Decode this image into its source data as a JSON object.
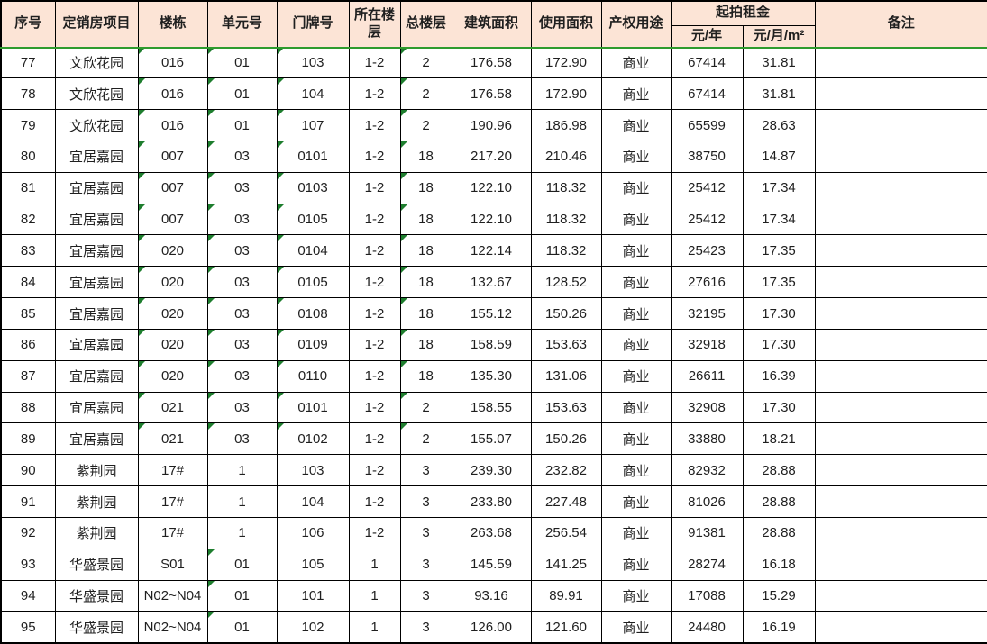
{
  "colors": {
    "header_fill": "#fce4d6",
    "grid_border": "#000000",
    "freeze_line_green": "#2e9b2e",
    "error_triangle_green": "#1e7e2e",
    "text": "#1f1f1f"
  },
  "table": {
    "rent_group_label": "起拍租金",
    "columns": [
      {
        "key": "seq",
        "label": "序号"
      },
      {
        "key": "project",
        "label": "定销房项目"
      },
      {
        "key": "building",
        "label": "楼栋"
      },
      {
        "key": "unit",
        "label": "单元号"
      },
      {
        "key": "door",
        "label": "门牌号"
      },
      {
        "key": "floor",
        "label": "所在楼层"
      },
      {
        "key": "total_floors",
        "label": "总楼层"
      },
      {
        "key": "build_area",
        "label": "建筑面积"
      },
      {
        "key": "use_area",
        "label": "使用面积"
      },
      {
        "key": "usage",
        "label": "产权用途"
      },
      {
        "key": "rent_year",
        "label": "元/年"
      },
      {
        "key": "rent_month",
        "label": "元/月/m²"
      },
      {
        "key": "remark",
        "label": "备注"
      }
    ],
    "rows": [
      {
        "seq": "77",
        "project": "文欣花园",
        "building": "016",
        "unit": "01",
        "door": "103",
        "floor": "1-2",
        "total_floors": "2",
        "build_area": "176.58",
        "use_area": "172.90",
        "usage": "商业",
        "rent_year": "67414",
        "rent_month": "31.81",
        "remark": "",
        "triangles": [
          "building",
          "unit",
          "door",
          "total_floors"
        ]
      },
      {
        "seq": "78",
        "project": "文欣花园",
        "building": "016",
        "unit": "01",
        "door": "104",
        "floor": "1-2",
        "total_floors": "2",
        "build_area": "176.58",
        "use_area": "172.90",
        "usage": "商业",
        "rent_year": "67414",
        "rent_month": "31.81",
        "remark": "",
        "triangles": [
          "building",
          "unit",
          "door",
          "total_floors"
        ]
      },
      {
        "seq": "79",
        "project": "文欣花园",
        "building": "016",
        "unit": "01",
        "door": "107",
        "floor": "1-2",
        "total_floors": "2",
        "build_area": "190.96",
        "use_area": "186.98",
        "usage": "商业",
        "rent_year": "65599",
        "rent_month": "28.63",
        "remark": "",
        "triangles": [
          "building",
          "unit",
          "door",
          "total_floors"
        ]
      },
      {
        "seq": "80",
        "project": "宜居嘉园",
        "building": "007",
        "unit": "03",
        "door": "0101",
        "floor": "1-2",
        "total_floors": "18",
        "build_area": "217.20",
        "use_area": "210.46",
        "usage": "商业",
        "rent_year": "38750",
        "rent_month": "14.87",
        "remark": "",
        "triangles": [
          "building",
          "unit",
          "door",
          "total_floors"
        ]
      },
      {
        "seq": "81",
        "project": "宜居嘉园",
        "building": "007",
        "unit": "03",
        "door": "0103",
        "floor": "1-2",
        "total_floors": "18",
        "build_area": "122.10",
        "use_area": "118.32",
        "usage": "商业",
        "rent_year": "25412",
        "rent_month": "17.34",
        "remark": "",
        "triangles": [
          "building",
          "unit",
          "door",
          "total_floors"
        ]
      },
      {
        "seq": "82",
        "project": "宜居嘉园",
        "building": "007",
        "unit": "03",
        "door": "0105",
        "floor": "1-2",
        "total_floors": "18",
        "build_area": "122.10",
        "use_area": "118.32",
        "usage": "商业",
        "rent_year": "25412",
        "rent_month": "17.34",
        "remark": "",
        "triangles": [
          "building",
          "unit",
          "door",
          "total_floors"
        ]
      },
      {
        "seq": "83",
        "project": "宜居嘉园",
        "building": "020",
        "unit": "03",
        "door": "0104",
        "floor": "1-2",
        "total_floors": "18",
        "build_area": "122.14",
        "use_area": "118.32",
        "usage": "商业",
        "rent_year": "25423",
        "rent_month": "17.35",
        "remark": "",
        "triangles": [
          "building",
          "unit",
          "door",
          "total_floors"
        ]
      },
      {
        "seq": "84",
        "project": "宜居嘉园",
        "building": "020",
        "unit": "03",
        "door": "0105",
        "floor": "1-2",
        "total_floors": "18",
        "build_area": "132.67",
        "use_area": "128.52",
        "usage": "商业",
        "rent_year": "27616",
        "rent_month": "17.35",
        "remark": "",
        "triangles": [
          "building",
          "unit",
          "door",
          "total_floors"
        ]
      },
      {
        "seq": "85",
        "project": "宜居嘉园",
        "building": "020",
        "unit": "03",
        "door": "0108",
        "floor": "1-2",
        "total_floors": "18",
        "build_area": "155.12",
        "use_area": "150.26",
        "usage": "商业",
        "rent_year": "32195",
        "rent_month": "17.30",
        "remark": "",
        "triangles": [
          "building",
          "unit",
          "door",
          "total_floors"
        ]
      },
      {
        "seq": "86",
        "project": "宜居嘉园",
        "building": "020",
        "unit": "03",
        "door": "0109",
        "floor": "1-2",
        "total_floors": "18",
        "build_area": "158.59",
        "use_area": "153.63",
        "usage": "商业",
        "rent_year": "32918",
        "rent_month": "17.30",
        "remark": "",
        "triangles": [
          "building",
          "unit",
          "door",
          "total_floors"
        ]
      },
      {
        "seq": "87",
        "project": "宜居嘉园",
        "building": "020",
        "unit": "03",
        "door": "0110",
        "floor": "1-2",
        "total_floors": "18",
        "build_area": "135.30",
        "use_area": "131.06",
        "usage": "商业",
        "rent_year": "26611",
        "rent_month": "16.39",
        "remark": "",
        "triangles": [
          "building",
          "unit",
          "door",
          "total_floors"
        ]
      },
      {
        "seq": "88",
        "project": "宜居嘉园",
        "building": "021",
        "unit": "03",
        "door": "0101",
        "floor": "1-2",
        "total_floors": "2",
        "build_area": "158.55",
        "use_area": "153.63",
        "usage": "商业",
        "rent_year": "32908",
        "rent_month": "17.30",
        "remark": "",
        "triangles": [
          "building",
          "unit",
          "door",
          "total_floors"
        ]
      },
      {
        "seq": "89",
        "project": "宜居嘉园",
        "building": "021",
        "unit": "03",
        "door": "0102",
        "floor": "1-2",
        "total_floors": "2",
        "build_area": "155.07",
        "use_area": "150.26",
        "usage": "商业",
        "rent_year": "33880",
        "rent_month": "18.21",
        "remark": "",
        "triangles": [
          "building",
          "unit",
          "door",
          "total_floors"
        ]
      },
      {
        "seq": "90",
        "project": "紫荆园",
        "building": "17#",
        "unit": "1",
        "door": "103",
        "floor": "1-2",
        "total_floors": "3",
        "build_area": "239.30",
        "use_area": "232.82",
        "usage": "商业",
        "rent_year": "82932",
        "rent_month": "28.88",
        "remark": "",
        "triangles": []
      },
      {
        "seq": "91",
        "project": "紫荆园",
        "building": "17#",
        "unit": "1",
        "door": "104",
        "floor": "1-2",
        "total_floors": "3",
        "build_area": "233.80",
        "use_area": "227.48",
        "usage": "商业",
        "rent_year": "81026",
        "rent_month": "28.88",
        "remark": "",
        "triangles": []
      },
      {
        "seq": "92",
        "project": "紫荆园",
        "building": "17#",
        "unit": "1",
        "door": "106",
        "floor": "1-2",
        "total_floors": "3",
        "build_area": "263.68",
        "use_area": "256.54",
        "usage": "商业",
        "rent_year": "91381",
        "rent_month": "28.88",
        "remark": "",
        "triangles": []
      },
      {
        "seq": "93",
        "project": "华盛景园",
        "building": "S01",
        "unit": "01",
        "door": "105",
        "floor": "1",
        "total_floors": "3",
        "build_area": "145.59",
        "use_area": "141.25",
        "usage": "商业",
        "rent_year": "28274",
        "rent_month": "16.18",
        "remark": "",
        "triangles": [
          "unit"
        ]
      },
      {
        "seq": "94",
        "project": "华盛景园",
        "building": "N02~N04",
        "unit": "01",
        "door": "101",
        "floor": "1",
        "total_floors": "3",
        "build_area": "93.16",
        "use_area": "89.91",
        "usage": "商业",
        "rent_year": "17088",
        "rent_month": "15.29",
        "remark": "",
        "triangles": [
          "unit"
        ]
      },
      {
        "seq": "95",
        "project": "华盛景园",
        "building": "N02~N04",
        "unit": "01",
        "door": "102",
        "floor": "1",
        "total_floors": "3",
        "build_area": "126.00",
        "use_area": "121.60",
        "usage": "商业",
        "rent_year": "24480",
        "rent_month": "16.19",
        "remark": "",
        "triangles": [
          "unit"
        ]
      }
    ]
  }
}
